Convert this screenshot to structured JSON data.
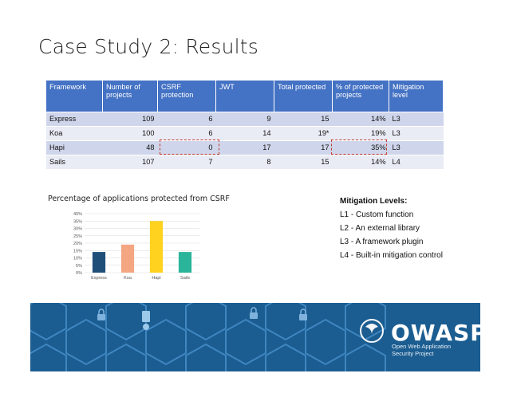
{
  "slide": {
    "title": "Case Study 2: Results"
  },
  "table": {
    "headers": [
      "Framework",
      "Number of projects",
      "CSRF protection",
      "JWT",
      "Total protected",
      "% of protected projects",
      "Mitigation level"
    ],
    "rows": [
      [
        "Express",
        "109",
        "6",
        "9",
        "15",
        "14%",
        "L3"
      ],
      [
        "Koa",
        "100",
        "6",
        "14",
        "19*",
        "19%",
        "L3"
      ],
      [
        "Hapi",
        "48",
        "0",
        "17",
        "17",
        "35%",
        "L3"
      ],
      [
        "Sails",
        "107",
        "7",
        "8",
        "15",
        "14%",
        "L4"
      ]
    ]
  },
  "chart_caption": "Percentage of applications protected from CSRF",
  "chart_data": {
    "type": "bar",
    "title": "",
    "categories": [
      "Express",
      "Koa",
      "Hapi",
      "Sails"
    ],
    "values": [
      14,
      19,
      35,
      14
    ],
    "colors": [
      "#1f4e79",
      "#f4a582",
      "#ffd21f",
      "#2ab59a"
    ],
    "yticks": [
      "0%",
      "5%",
      "10%",
      "15%",
      "20%",
      "25%",
      "30%",
      "35%",
      "40%"
    ],
    "ylim": [
      0,
      40
    ],
    "grid": true
  },
  "mitigation": {
    "title": "Mitigation Levels:",
    "items": [
      "L1 - Custom function",
      "L2 - An external library",
      "L3 - A framework plugin",
      "L4 - Built-in mitigation control"
    ]
  },
  "banner": {
    "logo_text": "OWASP",
    "subtitle_line1": "Open Web Application",
    "subtitle_line2": "Security Project",
    "color": "#1b5d91"
  }
}
